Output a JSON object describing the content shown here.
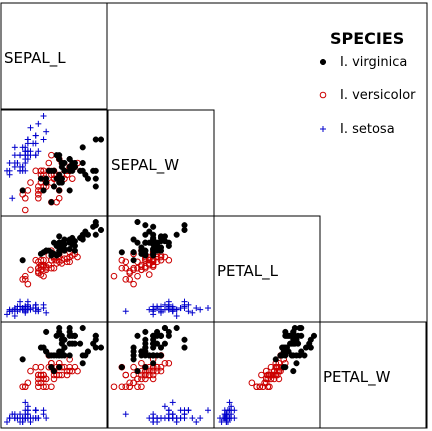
{
  "chart_data": {
    "type": "scatter",
    "layout": "lower-triangular scatterplot matrix",
    "variables": [
      "SEPAL_L",
      "SEPAL_W",
      "PETAL_L",
      "PETAL_W"
    ],
    "legend": {
      "title": "SPECIES",
      "position": "top-right"
    },
    "colors": {
      "I. virginica": "#000000",
      "I. versicolor": "#cc0000",
      "I. setosa": "#0000cc"
    },
    "ranges": {
      "SEPAL_L": [
        4.3,
        7.9
      ],
      "SEPAL_W": [
        2.0,
        4.4
      ],
      "PETAL_L": [
        1.0,
        6.9
      ],
      "PETAL_W": [
        0.1,
        2.5
      ]
    },
    "series": [
      {
        "name": "I. virginica",
        "marker": "filled-circle",
        "points": [
          [
            6.3,
            3.3,
            6.0,
            2.5
          ],
          [
            5.8,
            2.7,
            5.1,
            1.9
          ],
          [
            7.1,
            3.0,
            5.9,
            2.1
          ],
          [
            6.3,
            2.9,
            5.6,
            1.8
          ],
          [
            6.5,
            3.0,
            5.8,
            2.2
          ],
          [
            7.6,
            3.0,
            6.6,
            2.1
          ],
          [
            4.9,
            2.5,
            4.5,
            1.7
          ],
          [
            7.3,
            2.9,
            6.3,
            1.8
          ],
          [
            6.7,
            2.5,
            5.8,
            1.8
          ],
          [
            7.2,
            3.6,
            6.1,
            2.5
          ],
          [
            6.5,
            3.2,
            5.1,
            2.0
          ],
          [
            6.4,
            2.7,
            5.3,
            1.9
          ],
          [
            6.8,
            3.0,
            5.5,
            2.1
          ],
          [
            5.7,
            2.5,
            5.0,
            2.0
          ],
          [
            5.8,
            2.8,
            5.1,
            2.4
          ],
          [
            6.4,
            3.2,
            5.3,
            2.3
          ],
          [
            6.5,
            3.0,
            5.5,
            1.8
          ],
          [
            7.7,
            3.8,
            6.7,
            2.2
          ],
          [
            7.7,
            2.6,
            6.9,
            2.3
          ],
          [
            6.0,
            2.2,
            5.0,
            1.5
          ],
          [
            6.9,
            3.2,
            5.7,
            2.3
          ],
          [
            5.6,
            2.8,
            4.9,
            2.0
          ],
          [
            7.7,
            2.8,
            6.7,
            2.0
          ],
          [
            6.3,
            2.7,
            4.9,
            1.8
          ],
          [
            6.7,
            3.3,
            5.7,
            2.1
          ],
          [
            7.2,
            3.2,
            6.0,
            1.8
          ],
          [
            6.2,
            2.8,
            4.8,
            1.8
          ],
          [
            6.1,
            3.0,
            4.9,
            1.8
          ],
          [
            6.4,
            2.8,
            5.6,
            2.1
          ],
          [
            7.2,
            3.0,
            5.8,
            1.6
          ],
          [
            7.4,
            2.8,
            6.1,
            1.9
          ],
          [
            7.9,
            3.8,
            6.4,
            2.0
          ],
          [
            6.4,
            2.8,
            5.6,
            2.2
          ],
          [
            6.3,
            2.8,
            5.1,
            1.5
          ],
          [
            6.1,
            2.6,
            5.6,
            1.4
          ],
          [
            7.7,
            3.0,
            6.1,
            2.3
          ],
          [
            6.3,
            3.4,
            5.6,
            2.4
          ],
          [
            6.4,
            3.1,
            5.5,
            1.8
          ],
          [
            6.0,
            3.0,
            4.8,
            1.8
          ],
          [
            6.9,
            3.1,
            5.4,
            2.1
          ],
          [
            6.7,
            3.1,
            5.6,
            2.4
          ],
          [
            6.9,
            3.1,
            5.1,
            2.3
          ],
          [
            5.8,
            2.7,
            5.1,
            1.9
          ],
          [
            6.8,
            3.2,
            5.9,
            2.3
          ],
          [
            6.7,
            3.3,
            5.7,
            2.5
          ],
          [
            6.7,
            3.0,
            5.2,
            2.3
          ],
          [
            6.3,
            2.5,
            5.0,
            1.9
          ],
          [
            6.5,
            3.0,
            5.2,
            2.0
          ],
          [
            6.2,
            3.4,
            5.4,
            2.3
          ],
          [
            5.9,
            3.0,
            5.1,
            1.8
          ]
        ]
      },
      {
        "name": "I. versicolor",
        "marker": "open-circle",
        "points": [
          [
            7.0,
            3.2,
            4.7,
            1.4
          ],
          [
            6.4,
            3.2,
            4.5,
            1.5
          ],
          [
            6.9,
            3.1,
            4.9,
            1.5
          ],
          [
            5.5,
            2.3,
            4.0,
            1.3
          ],
          [
            6.5,
            2.8,
            4.6,
            1.5
          ],
          [
            5.7,
            2.8,
            4.5,
            1.3
          ],
          [
            6.3,
            3.3,
            4.7,
            1.6
          ],
          [
            4.9,
            2.4,
            3.3,
            1.0
          ],
          [
            6.6,
            2.9,
            4.6,
            1.3
          ],
          [
            5.2,
            2.7,
            3.9,
            1.4
          ],
          [
            5.0,
            2.0,
            3.5,
            1.0
          ],
          [
            5.9,
            3.0,
            4.2,
            1.5
          ],
          [
            6.0,
            2.2,
            4.0,
            1.0
          ],
          [
            6.1,
            2.9,
            4.7,
            1.4
          ],
          [
            5.6,
            2.9,
            3.6,
            1.3
          ],
          [
            6.7,
            3.1,
            4.4,
            1.4
          ],
          [
            5.6,
            3.0,
            4.5,
            1.5
          ],
          [
            5.8,
            2.7,
            4.1,
            1.0
          ],
          [
            6.2,
            2.2,
            4.5,
            1.5
          ],
          [
            5.6,
            2.5,
            3.9,
            1.1
          ],
          [
            5.9,
            3.2,
            4.8,
            1.8
          ],
          [
            6.1,
            2.8,
            4.0,
            1.3
          ],
          [
            6.3,
            2.5,
            4.9,
            1.5
          ],
          [
            6.1,
            2.8,
            4.7,
            1.2
          ],
          [
            6.4,
            2.9,
            4.3,
            1.3
          ],
          [
            6.6,
            3.0,
            4.4,
            1.4
          ],
          [
            6.8,
            2.8,
            4.8,
            1.4
          ],
          [
            6.7,
            3.0,
            5.0,
            1.7
          ],
          [
            6.0,
            2.9,
            4.5,
            1.5
          ],
          [
            5.7,
            2.6,
            3.5,
            1.0
          ],
          [
            5.5,
            2.4,
            3.8,
            1.1
          ],
          [
            5.5,
            2.4,
            3.7,
            1.0
          ],
          [
            5.8,
            2.7,
            3.9,
            1.2
          ],
          [
            6.0,
            2.7,
            5.1,
            1.6
          ],
          [
            5.4,
            3.0,
            4.5,
            1.5
          ],
          [
            6.0,
            3.4,
            4.5,
            1.6
          ],
          [
            6.7,
            3.1,
            4.7,
            1.5
          ],
          [
            6.3,
            2.3,
            4.4,
            1.3
          ],
          [
            5.6,
            3.0,
            4.1,
            1.3
          ],
          [
            5.5,
            2.5,
            4.0,
            1.3
          ],
          [
            5.5,
            2.6,
            4.4,
            1.2
          ],
          [
            6.1,
            3.0,
            4.6,
            1.4
          ],
          [
            5.8,
            2.6,
            4.0,
            1.2
          ],
          [
            5.0,
            2.3,
            3.3,
            1.0
          ],
          [
            5.6,
            2.7,
            4.2,
            1.3
          ],
          [
            5.7,
            3.0,
            4.2,
            1.2
          ],
          [
            5.7,
            2.9,
            4.2,
            1.3
          ],
          [
            6.2,
            2.9,
            4.3,
            1.3
          ],
          [
            5.1,
            2.5,
            3.0,
            1.1
          ],
          [
            5.7,
            2.8,
            4.1,
            1.3
          ]
        ]
      },
      {
        "name": "I. setosa",
        "marker": "plus",
        "points": [
          [
            5.1,
            3.5,
            1.4,
            0.2
          ],
          [
            4.9,
            3.0,
            1.4,
            0.2
          ],
          [
            4.7,
            3.2,
            1.3,
            0.2
          ],
          [
            4.6,
            3.1,
            1.5,
            0.2
          ],
          [
            5.0,
            3.6,
            1.4,
            0.2
          ],
          [
            5.4,
            3.9,
            1.7,
            0.4
          ],
          [
            4.6,
            3.4,
            1.4,
            0.3
          ],
          [
            5.0,
            3.4,
            1.5,
            0.2
          ],
          [
            4.4,
            2.9,
            1.4,
            0.2
          ],
          [
            4.9,
            3.1,
            1.5,
            0.1
          ],
          [
            5.4,
            3.7,
            1.5,
            0.2
          ],
          [
            4.8,
            3.4,
            1.6,
            0.2
          ],
          [
            4.8,
            3.0,
            1.4,
            0.1
          ],
          [
            4.3,
            3.0,
            1.1,
            0.1
          ],
          [
            5.8,
            4.0,
            1.2,
            0.2
          ],
          [
            5.7,
            4.4,
            1.5,
            0.4
          ],
          [
            5.4,
            3.9,
            1.3,
            0.4
          ],
          [
            5.1,
            3.5,
            1.4,
            0.3
          ],
          [
            5.7,
            3.8,
            1.7,
            0.3
          ],
          [
            5.1,
            3.8,
            1.5,
            0.3
          ],
          [
            5.4,
            3.4,
            1.7,
            0.2
          ],
          [
            5.1,
            3.7,
            1.5,
            0.4
          ],
          [
            4.6,
            3.6,
            1.0,
            0.2
          ],
          [
            5.1,
            3.3,
            1.7,
            0.5
          ],
          [
            4.8,
            3.4,
            1.9,
            0.2
          ],
          [
            5.0,
            3.0,
            1.6,
            0.2
          ],
          [
            5.0,
            3.4,
            1.6,
            0.4
          ],
          [
            5.2,
            3.5,
            1.5,
            0.2
          ],
          [
            5.2,
            3.4,
            1.4,
            0.2
          ],
          [
            4.7,
            3.2,
            1.6,
            0.2
          ],
          [
            4.8,
            3.1,
            1.6,
            0.2
          ],
          [
            5.4,
            3.4,
            1.5,
            0.4
          ],
          [
            5.2,
            4.1,
            1.5,
            0.1
          ],
          [
            5.5,
            4.2,
            1.4,
            0.2
          ],
          [
            4.9,
            3.1,
            1.5,
            0.2
          ],
          [
            5.0,
            3.2,
            1.2,
            0.2
          ],
          [
            5.5,
            3.5,
            1.3,
            0.2
          ],
          [
            4.9,
            3.6,
            1.4,
            0.1
          ],
          [
            4.4,
            3.0,
            1.3,
            0.2
          ],
          [
            5.1,
            3.4,
            1.5,
            0.2
          ],
          [
            5.0,
            3.5,
            1.3,
            0.3
          ],
          [
            4.5,
            2.3,
            1.3,
            0.3
          ],
          [
            4.4,
            3.2,
            1.3,
            0.2
          ],
          [
            5.0,
            3.5,
            1.6,
            0.6
          ],
          [
            5.1,
            3.8,
            1.9,
            0.4
          ],
          [
            4.8,
            3.0,
            1.4,
            0.3
          ],
          [
            5.1,
            3.8,
            1.6,
            0.2
          ],
          [
            4.6,
            3.2,
            1.4,
            0.2
          ],
          [
            5.3,
            3.7,
            1.5,
            0.2
          ],
          [
            5.0,
            3.3,
            1.4,
            0.2
          ]
        ]
      }
    ]
  }
}
